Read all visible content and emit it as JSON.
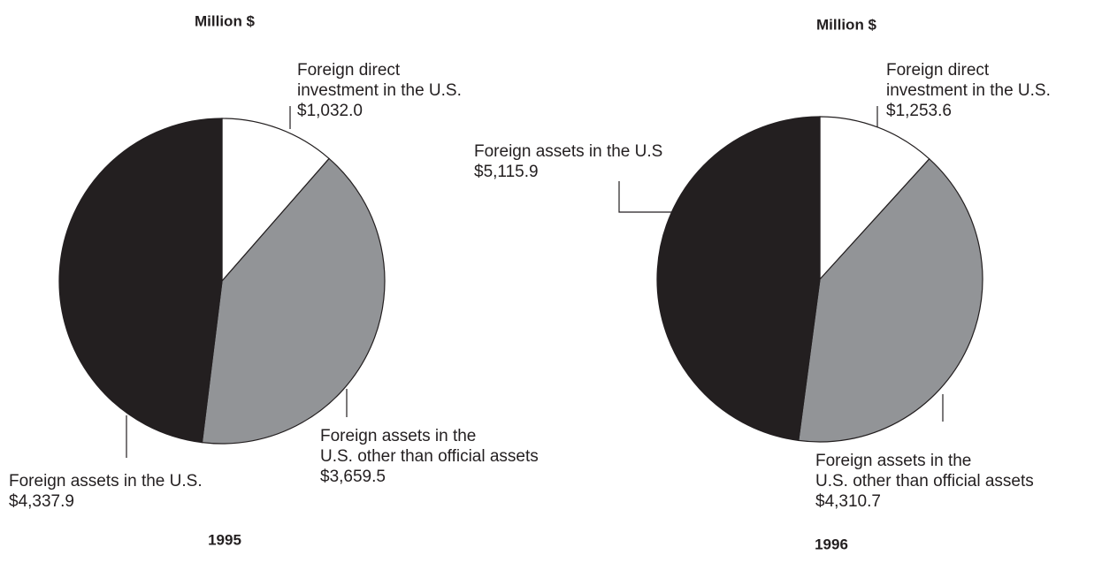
{
  "chart_data": [
    {
      "type": "pie",
      "title": "Million $",
      "xlabel": "1995",
      "categories": [
        [
          "Foreign  direct",
          "investment in the U.S."
        ],
        [
          "Foreign assets in the",
          "U.S. other than official assets"
        ],
        [
          "Foreign assets  in the U.S."
        ]
      ],
      "values": [
        1032.0,
        3659.5,
        4337.9
      ],
      "value_labels": [
        "$1,032.0",
        "$3,659.5",
        "$4,337.9"
      ],
      "colors": [
        "#ffffff",
        "#929497",
        "#231f20"
      ]
    },
    {
      "type": "pie",
      "title": "Million $",
      "xlabel": "1996",
      "categories": [
        [
          "Foreign  direct",
          "investment in the U.S."
        ],
        [
          "Foreign assets in the",
          "U.S. other than official assets"
        ],
        [
          "Foreign assets  in the U.S"
        ]
      ],
      "values": [
        1253.6,
        4310.7,
        5115.9
      ],
      "value_labels": [
        "$1,253.6",
        "$4,310.7",
        "$5,115.9"
      ],
      "colors": [
        "#ffffff",
        "#929497",
        "#231f20"
      ]
    }
  ]
}
